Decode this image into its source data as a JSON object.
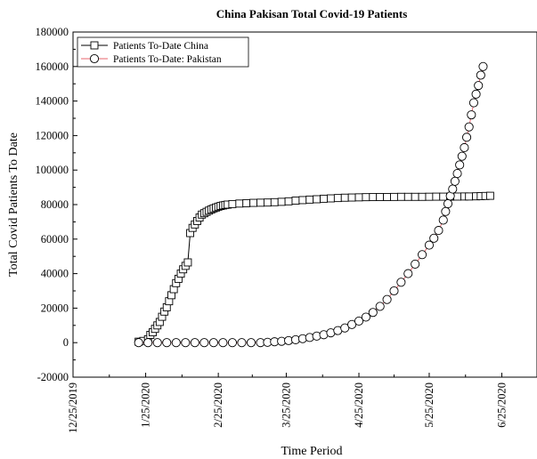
{
  "chart_data": {
    "type": "scatter",
    "title": "China Pakisan Total Covid-19 Patients",
    "xlabel": "Time Period",
    "ylabel": "Total Covid Patients To Date",
    "ylim": [
      -20000,
      180000
    ],
    "y_ticks": [
      -20000,
      0,
      20000,
      40000,
      60000,
      80000,
      100000,
      120000,
      140000,
      160000,
      180000
    ],
    "x_ticks": [
      "12/25/2019",
      "1/25/2020",
      "2/25/2020",
      "3/25/2020",
      "4/25/2020",
      "5/25/2020",
      "6/25/2020"
    ],
    "x_range": [
      "12/25/2019",
      "7/10/2020"
    ],
    "grid": false,
    "legend_position": "top-left",
    "series": [
      {
        "name": "Patients To-Date China",
        "marker": "square",
        "color": "#000000",
        "line_color": "#000000",
        "points": [
          [
            "1/22/2020",
            548
          ],
          [
            "1/24/2020",
            1000
          ],
          [
            "1/26/2020",
            2000
          ],
          [
            "1/27/2020",
            4500
          ],
          [
            "1/28/2020",
            6000
          ],
          [
            "1/29/2020",
            8000
          ],
          [
            "1/30/2020",
            10000
          ],
          [
            "1/31/2020",
            12000
          ],
          [
            "2/1/2020",
            15000
          ],
          [
            "2/2/2020",
            18000
          ],
          [
            "2/3/2020",
            20500
          ],
          [
            "2/4/2020",
            24000
          ],
          [
            "2/5/2020",
            27500
          ],
          [
            "2/6/2020",
            31000
          ],
          [
            "2/7/2020",
            34500
          ],
          [
            "2/8/2020",
            37000
          ],
          [
            "2/9/2020",
            40000
          ],
          [
            "2/10/2020",
            42500
          ],
          [
            "2/11/2020",
            44500
          ],
          [
            "2/12/2020",
            46500
          ],
          [
            "2/13/2020",
            63500
          ],
          [
            "2/14/2020",
            66500
          ],
          [
            "2/15/2020",
            68500
          ],
          [
            "2/16/2020",
            70500
          ],
          [
            "2/17/2020",
            72500
          ],
          [
            "2/18/2020",
            74200
          ],
          [
            "2/19/2020",
            75000
          ],
          [
            "2/20/2020",
            75800
          ],
          [
            "2/21/2020",
            76500
          ],
          [
            "2/22/2020",
            77200
          ],
          [
            "2/23/2020",
            77800
          ],
          [
            "2/24/2020",
            78300
          ],
          [
            "2/25/2020",
            78800
          ],
          [
            "2/26/2020",
            79200
          ],
          [
            "2/27/2020",
            79500
          ],
          [
            "2/28/2020",
            79800
          ],
          [
            "2/29/2020",
            80000
          ],
          [
            "3/2/2020",
            80300
          ],
          [
            "3/5/2020",
            80600
          ],
          [
            "3/8/2020",
            80800
          ],
          [
            "3/11/2020",
            81000
          ],
          [
            "3/14/2020",
            81100
          ],
          [
            "3/17/2020",
            81200
          ],
          [
            "3/20/2020",
            81400
          ],
          [
            "3/23/2020",
            81600
          ],
          [
            "3/26/2020",
            81900
          ],
          [
            "3/29/2020",
            82300
          ],
          [
            "4/1/2020",
            82600
          ],
          [
            "4/4/2020",
            82900
          ],
          [
            "4/7/2020",
            83100
          ],
          [
            "4/10/2020",
            83400
          ],
          [
            "4/13/2020",
            83600
          ],
          [
            "4/16/2020",
            83800
          ],
          [
            "4/19/2020",
            84000
          ],
          [
            "4/22/2020",
            84100
          ],
          [
            "4/25/2020",
            84200
          ],
          [
            "4/28/2020",
            84300
          ],
          [
            "5/1/2020",
            84350
          ],
          [
            "5/4/2020",
            84400
          ],
          [
            "5/7/2020",
            84400
          ],
          [
            "5/10/2020",
            84450
          ],
          [
            "5/13/2020",
            84500
          ],
          [
            "5/16/2020",
            84500
          ],
          [
            "5/19/2020",
            84500
          ],
          [
            "5/22/2020",
            84500
          ],
          [
            "5/25/2020",
            84550
          ],
          [
            "5/28/2020",
            84600
          ],
          [
            "5/31/2020",
            84600
          ],
          [
            "6/3/2020",
            84600
          ],
          [
            "6/6/2020",
            84650
          ],
          [
            "6/9/2020",
            84700
          ],
          [
            "6/11/2020",
            84700
          ],
          [
            "6/14/2020",
            84800
          ],
          [
            "6/16/2020",
            84900
          ],
          [
            "6/18/2020",
            85000
          ],
          [
            "6/20/2020",
            85100
          ]
        ]
      },
      {
        "name": "Patients To-Date: Pakistan",
        "marker": "circle",
        "color": "#000000",
        "line_color": "#e8646e",
        "points": [
          [
            "1/22/2020",
            0
          ],
          [
            "1/26/2020",
            0
          ],
          [
            "1/30/2020",
            0
          ],
          [
            "2/3/2020",
            0
          ],
          [
            "2/7/2020",
            0
          ],
          [
            "2/11/2020",
            0
          ],
          [
            "2/15/2020",
            0
          ],
          [
            "2/19/2020",
            0
          ],
          [
            "2/23/2020",
            0
          ],
          [
            "2/27/2020",
            0
          ],
          [
            "3/2/2020",
            5
          ],
          [
            "3/6/2020",
            6
          ],
          [
            "3/10/2020",
            19
          ],
          [
            "3/14/2020",
            28
          ],
          [
            "3/17/2020",
            200
          ],
          [
            "3/20/2020",
            500
          ],
          [
            "3/23/2020",
            800
          ],
          [
            "3/26/2020",
            1200
          ],
          [
            "3/29/2020",
            1700
          ],
          [
            "4/1/2020",
            2300
          ],
          [
            "4/4/2020",
            3000
          ],
          [
            "4/7/2020",
            3800
          ],
          [
            "4/10/2020",
            4600
          ],
          [
            "4/13/2020",
            5700
          ],
          [
            "4/16/2020",
            7000
          ],
          [
            "4/19/2020",
            8500
          ],
          [
            "4/22/2020",
            10500
          ],
          [
            "4/25/2020",
            12500
          ],
          [
            "4/28/2020",
            14800
          ],
          [
            "5/1/2020",
            17500
          ],
          [
            "5/4/2020",
            21000
          ],
          [
            "5/7/2020",
            25000
          ],
          [
            "5/10/2020",
            30000
          ],
          [
            "5/13/2020",
            35000
          ],
          [
            "5/16/2020",
            40000
          ],
          [
            "5/19/2020",
            45500
          ],
          [
            "5/22/2020",
            51000
          ],
          [
            "5/25/2020",
            56500
          ],
          [
            "5/27/2020",
            60500
          ],
          [
            "5/29/2020",
            65000
          ],
          [
            "5/31/2020",
            71000
          ],
          [
            "6/1/2020",
            76000
          ],
          [
            "6/2/2020",
            80500
          ],
          [
            "6/3/2020",
            85000
          ],
          [
            "6/4/2020",
            89000
          ],
          [
            "6/5/2020",
            93500
          ],
          [
            "6/6/2020",
            98000
          ],
          [
            "6/7/2020",
            103000
          ],
          [
            "6/8/2020",
            108000
          ],
          [
            "6/9/2020",
            113000
          ],
          [
            "6/10/2020",
            119000
          ],
          [
            "6/11/2020",
            125000
          ],
          [
            "6/12/2020",
            132000
          ],
          [
            "6/13/2020",
            139000
          ],
          [
            "6/14/2020",
            144000
          ],
          [
            "6/15/2020",
            149000
          ],
          [
            "6/16/2020",
            155000
          ],
          [
            "6/17/2020",
            160000
          ]
        ]
      }
    ]
  }
}
